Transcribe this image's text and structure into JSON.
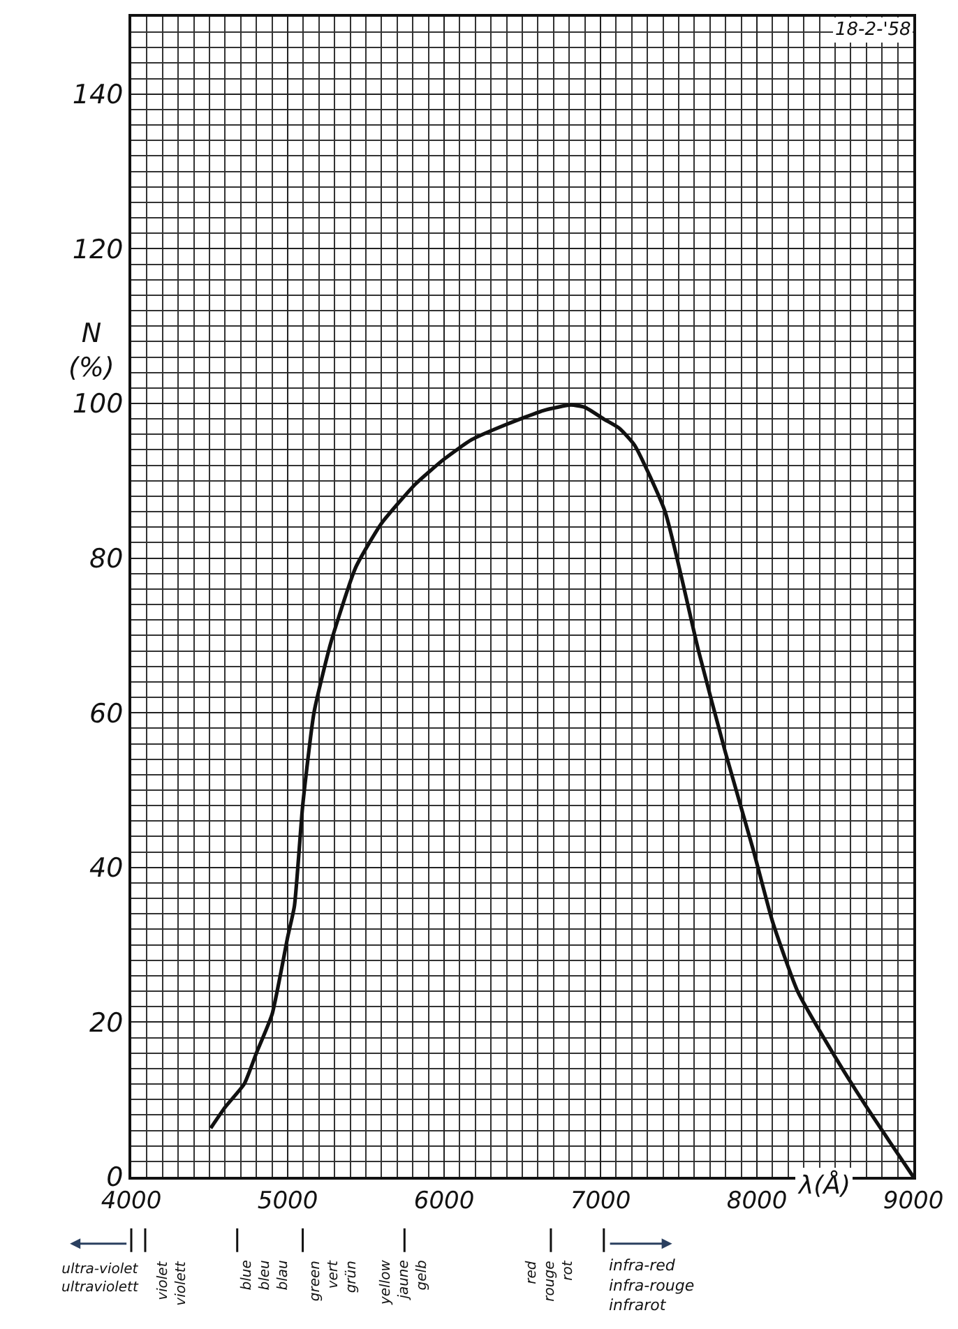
{
  "chart_data": {
    "type": "line",
    "xlabel": "λ(Å)",
    "ylabel": "N\n(%)",
    "x": [
      4508,
      4600,
      4722,
      4800,
      4900,
      5000,
      5043,
      5096,
      5168,
      5275,
      5435,
      5600,
      5818,
      6000,
      6175,
      6400,
      6638,
      6810,
      6900,
      7020,
      7120,
      7218,
      7413,
      7627,
      7797,
      7975,
      8100,
      8260,
      8456,
      8670,
      8850,
      9000
    ],
    "series": [
      {
        "color": "#111111",
        "values": [
          6.3,
          9,
          12,
          16,
          21,
          31,
          35,
          48,
          60,
          69,
          78.8,
          84.5,
          89.6,
          92.8,
          95.3,
          97.3,
          99.1,
          99.8,
          99.5,
          98,
          96.8,
          94.6,
          86,
          68,
          55,
          42.4,
          33,
          24,
          17,
          10,
          4.5,
          0
        ]
      }
    ],
    "xlim": [
      4000,
      9000
    ],
    "ylim": [
      0,
      150
    ],
    "xticks": [
      4000,
      5000,
      6000,
      7000,
      8000,
      9000
    ],
    "yticks": [
      0,
      20,
      40,
      60,
      80,
      100,
      120,
      140
    ],
    "grid": true,
    "marker": "none",
    "line_style": "solid",
    "annotations": [
      "18-2-'58",
      "ultra-violet\nultraviolett",
      "violet\nviolett",
      "blue\nbleu\nblau",
      "green\nvert\ngrün",
      "yellow\njaune\ngelb",
      "red\nrouge\nrot",
      "infra-red\ninfra-rouge\ninfrarot"
    ]
  }
}
